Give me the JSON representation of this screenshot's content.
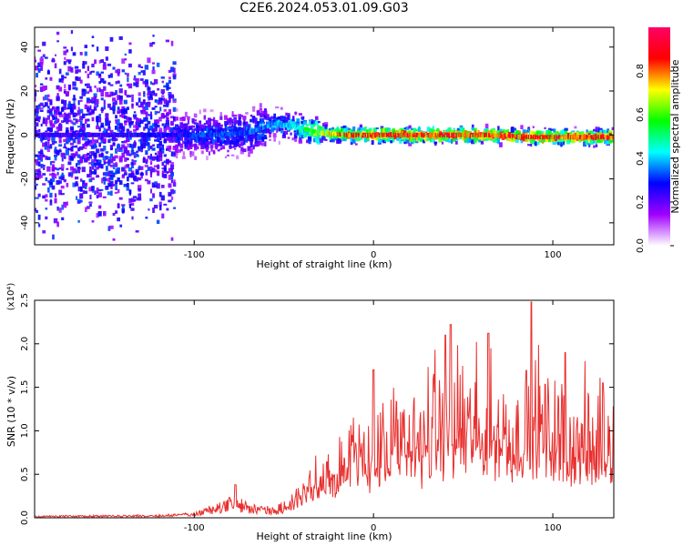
{
  "title": "C2E6.2024.053.01.09.G03",
  "chart_data": [
    {
      "type": "heatmap",
      "xlabel": "Height of straight line (km)",
      "ylabel": "Frequency (Hz)",
      "xlim": [
        -189,
        134
      ],
      "ylim": [
        -50,
        49
      ],
      "x_ticks": [
        "-100",
        "0",
        "100"
      ],
      "y_ticks": [
        "-40",
        "-20",
        "0",
        "20",
        "40"
      ],
      "colorbar": {
        "label": "Normalized spectral amplitude",
        "range": [
          0,
          1
        ],
        "ticks": [
          "0.0",
          "0.2",
          "0.4",
          "0.6",
          "0.8"
        ],
        "colors": [
          "#ffffff",
          "#a000ff",
          "#0000ff",
          "#00ffff",
          "#00ff00",
          "#ffff00",
          "#ff0000",
          "#ff0066"
        ]
      },
      "ridge": [
        {
          "x": -189,
          "y": 0,
          "amp": 0.25
        },
        {
          "x": -140,
          "y": 0,
          "amp": 0.25
        },
        {
          "x": -110,
          "y": 0,
          "amp": 0.3
        },
        {
          "x": -90,
          "y": 0,
          "amp": 0.35
        },
        {
          "x": -70,
          "y": 1,
          "amp": 0.35
        },
        {
          "x": -55,
          "y": 5,
          "amp": 0.4
        },
        {
          "x": -45,
          "y": 4,
          "amp": 0.45
        },
        {
          "x": -30,
          "y": 1,
          "amp": 0.7
        },
        {
          "x": -15,
          "y": 0,
          "amp": 0.85
        },
        {
          "x": 0,
          "y": 0,
          "amp": 0.9
        },
        {
          "x": 30,
          "y": 0,
          "amp": 0.9
        },
        {
          "x": 60,
          "y": 0,
          "amp": 0.9
        },
        {
          "x": 90,
          "y": -1,
          "amp": 0.9
        },
        {
          "x": 134,
          "y": -1,
          "amp": 0.88
        }
      ]
    },
    {
      "type": "line",
      "xlabel": "Height of straight line (km)",
      "ylabel": "SNR (10 * v/v)",
      "y_multiplier": "(x10⁴)",
      "xlim": [
        -189,
        134
      ],
      "ylim": [
        0,
        2.5
      ],
      "x_ticks": [
        "-100",
        "0",
        "100"
      ],
      "y_ticks": [
        "0.0",
        "0.5",
        "1.0",
        "1.5",
        "2.0",
        "2.5"
      ],
      "color": "#e8302f",
      "envelope": [
        {
          "x": -189,
          "y": 0.02
        },
        {
          "x": -120,
          "y": 0.03
        },
        {
          "x": -100,
          "y": 0.05
        },
        {
          "x": -90,
          "y": 0.12
        },
        {
          "x": -78,
          "y": 0.22
        },
        {
          "x": -70,
          "y": 0.15
        },
        {
          "x": -55,
          "y": 0.1
        },
        {
          "x": -45,
          "y": 0.25
        },
        {
          "x": -35,
          "y": 0.5
        },
        {
          "x": -25,
          "y": 0.75
        },
        {
          "x": -10,
          "y": 0.9
        },
        {
          "x": 0,
          "y": 1.05
        },
        {
          "x": 20,
          "y": 1.2
        },
        {
          "x": 40,
          "y": 1.5
        },
        {
          "x": 60,
          "y": 1.4
        },
        {
          "x": 80,
          "y": 1.35
        },
        {
          "x": 90,
          "y": 1.5
        },
        {
          "x": 110,
          "y": 1.2
        },
        {
          "x": 134,
          "y": 1.15
        }
      ],
      "peaks": [
        {
          "x": -77,
          "y": 0.38
        },
        {
          "x": 0,
          "y": 1.7
        },
        {
          "x": 40,
          "y": 2.1
        },
        {
          "x": 43,
          "y": 2.22
        },
        {
          "x": 64,
          "y": 2.12
        },
        {
          "x": 88,
          "y": 2.48
        },
        {
          "x": 107,
          "y": 1.9
        },
        {
          "x": 128,
          "y": 1.55
        }
      ]
    }
  ]
}
